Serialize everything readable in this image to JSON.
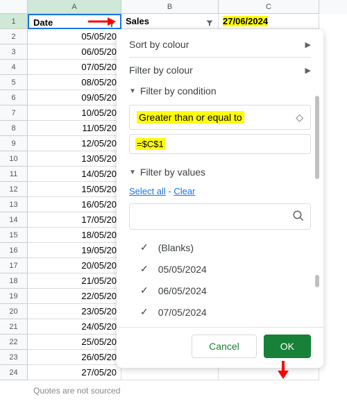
{
  "columns": {
    "a": "A",
    "b": "B",
    "c": "C"
  },
  "headers": {
    "date": "Date",
    "sales": "Sales",
    "ref_date": "27/06/2024"
  },
  "dates": [
    "05/05/20",
    "06/05/20",
    "07/05/20",
    "08/05/20",
    "09/05/20",
    "10/05/20",
    "11/05/20",
    "12/05/20",
    "13/05/20",
    "14/05/20",
    "15/05/20",
    "16/05/20",
    "17/05/20",
    "18/05/20",
    "19/05/20",
    "20/05/20",
    "21/05/20",
    "22/05/20",
    "23/05/20",
    "24/05/20",
    "25/05/20",
    "26/05/20",
    "27/05/20"
  ],
  "panel": {
    "sort_by_colour": "Sort by colour",
    "filter_by_colour": "Filter by colour",
    "filter_by_condition": "Filter by condition",
    "condition": "Greater than or equal to",
    "condition_value": "=$C$1",
    "filter_by_values": "Filter by values",
    "select_all": "Select all",
    "clear": "Clear",
    "values": [
      "(Blanks)",
      "05/05/2024",
      "06/05/2024",
      "07/05/2024"
    ],
    "cancel": "Cancel",
    "ok": "OK"
  },
  "footer": "Quotes are not sourced",
  "colors": {
    "highlight": "#ffff00",
    "ok_bg": "#188038",
    "link": "#1a73e8",
    "arrow": "#ff0000"
  }
}
